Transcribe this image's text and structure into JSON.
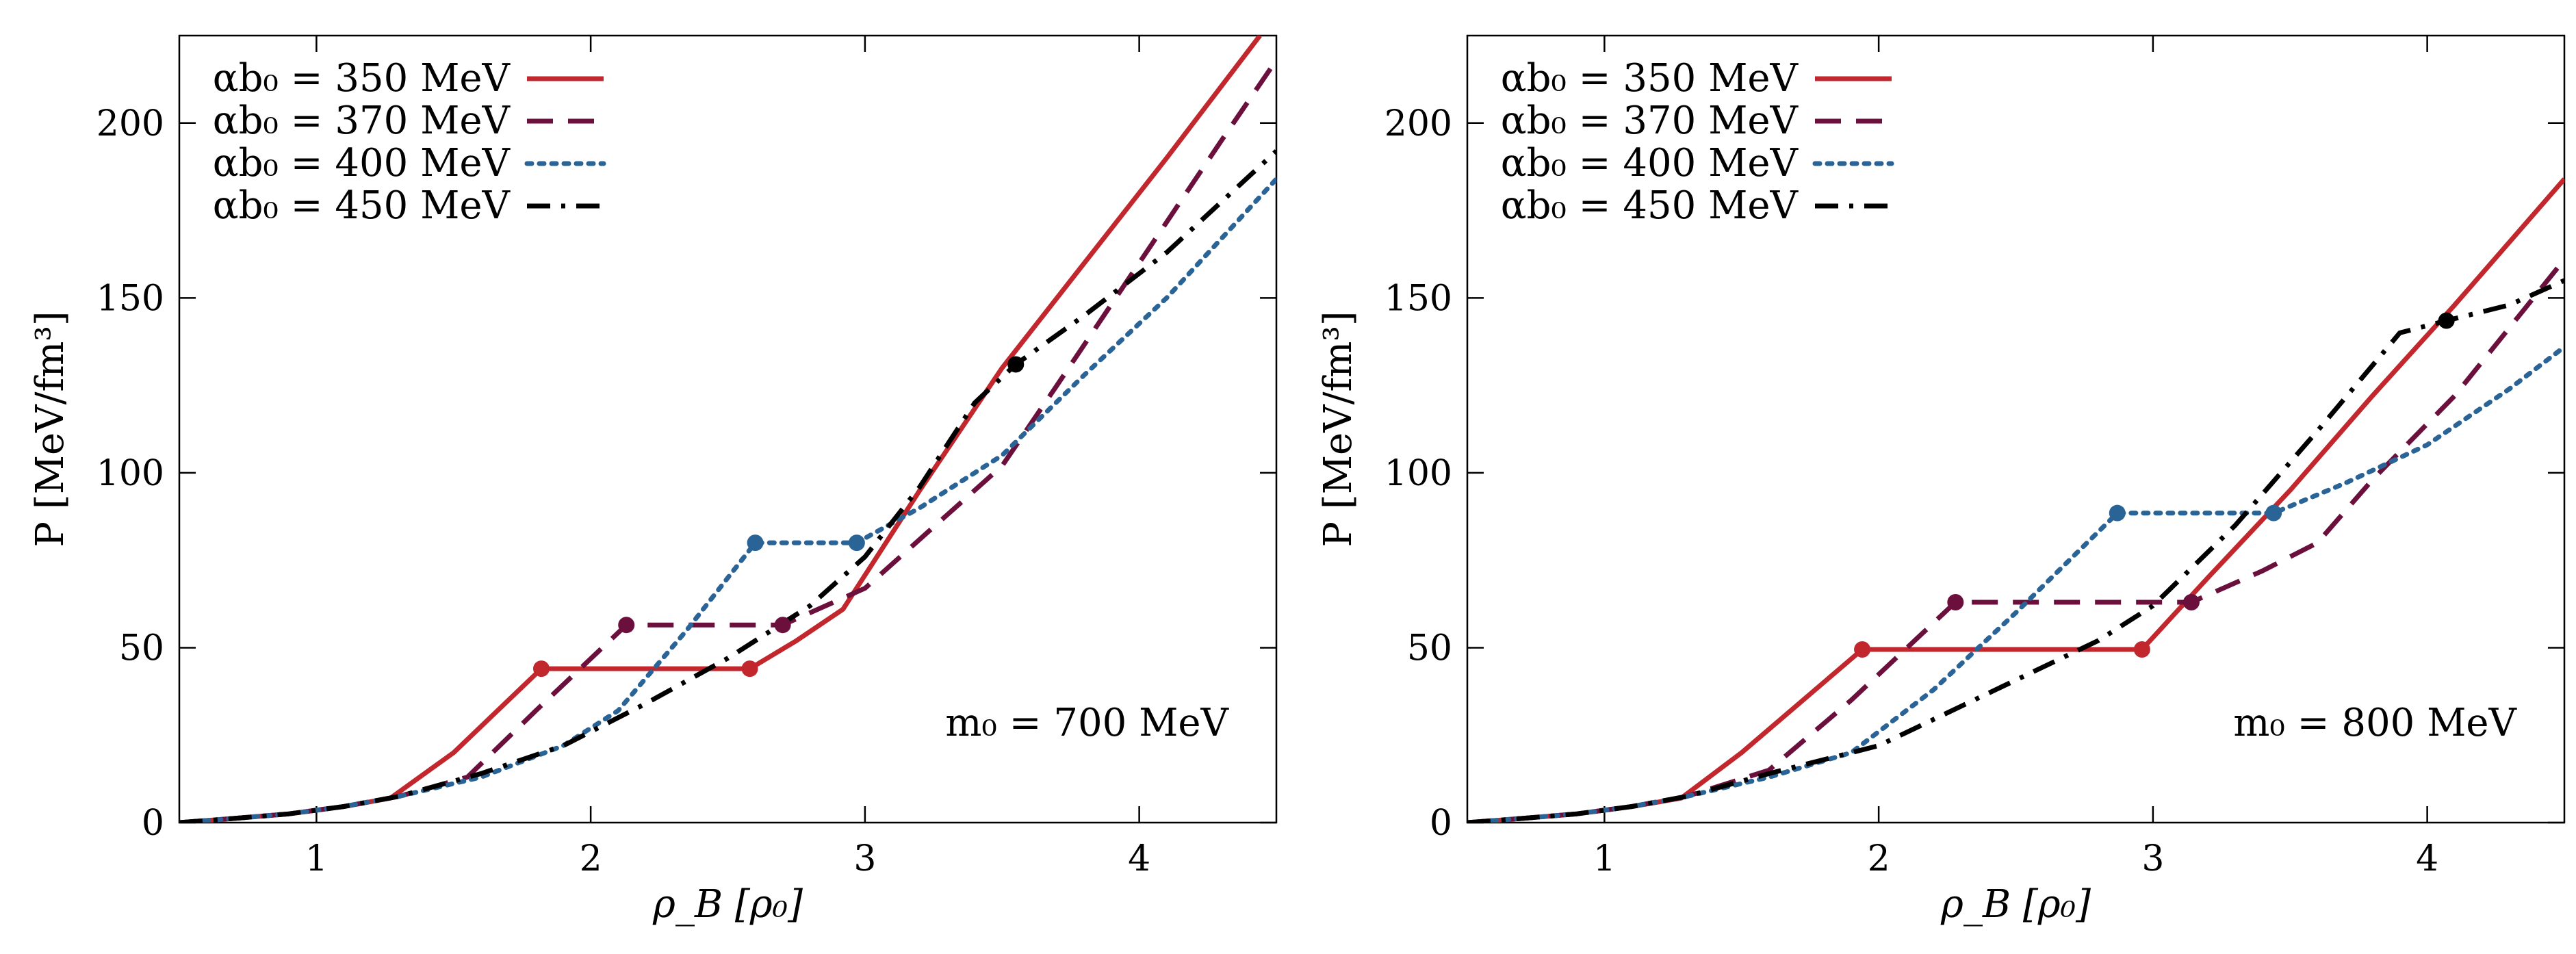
{
  "colors": {
    "red": "#c1272d",
    "maroon": "#6b0f3c",
    "blue": "#2a6496",
    "black": "#000000"
  },
  "legend_labels": [
    "αb₀ = 350 MeV",
    "αb₀ = 370 MeV",
    "αb₀ = 400 MeV",
    "αb₀ = 450 MeV"
  ],
  "chart_data": [
    {
      "type": "line",
      "xlabel": "ρ_B [ρ₀]",
      "ylabel": "P [MeV/fm³]",
      "xlim": [
        0.5,
        4.5
      ],
      "ylim": [
        0,
        225
      ],
      "xticks": [
        1,
        2,
        3,
        4
      ],
      "yticks": [
        0,
        50,
        100,
        150,
        200
      ],
      "xtick_labels": [
        "1",
        "2",
        "3",
        "4"
      ],
      "ytick_labels": [
        "0",
        "50",
        "100",
        "150",
        "200"
      ],
      "annotation": "m₀ = 700 MeV",
      "legend_position": "top-left",
      "grid": false,
      "series": [
        {
          "name": "αb₀ = 350 MeV",
          "color": "#c1272d",
          "style": "solid",
          "points": [
            [
              0.5,
              0
            ],
            [
              0.7,
              1.2
            ],
            [
              0.9,
              2.5
            ],
            [
              1.1,
              4.6
            ],
            [
              1.27,
              7
            ],
            [
              1.5,
              20
            ],
            [
              1.82,
              44
            ],
            [
              2.58,
              44
            ],
            [
              2.75,
              52
            ],
            [
              2.92,
              61
            ],
            [
              3.2,
              95
            ],
            [
              3.5,
              130
            ],
            [
              3.8,
              160
            ],
            [
              4.1,
              190
            ],
            [
              4.44,
              225
            ]
          ],
          "markers": [
            [
              1.82,
              44
            ],
            [
              2.58,
              44
            ]
          ]
        },
        {
          "name": "αb₀ = 370 MeV",
          "color": "#6b0f3c",
          "style": "dashed",
          "points": [
            [
              0.5,
              0
            ],
            [
              0.7,
              1.2
            ],
            [
              0.9,
              2.5
            ],
            [
              1.1,
              4.6
            ],
            [
              1.3,
              7.5
            ],
            [
              1.55,
              13
            ],
            [
              1.8,
              32
            ],
            [
              2.13,
              56.5
            ],
            [
              2.7,
              56.5
            ],
            [
              3.0,
              67
            ],
            [
              3.3,
              88
            ],
            [
              3.5,
              102
            ],
            [
              3.7,
              125
            ],
            [
              4.0,
              160
            ],
            [
              4.3,
              195
            ],
            [
              4.5,
              218
            ]
          ],
          "markers": [
            [
              2.13,
              56.5
            ],
            [
              2.7,
              56.5
            ]
          ]
        },
        {
          "name": "αb₀ = 400 MeV",
          "color": "#2a6496",
          "style": "dotted",
          "points": [
            [
              0.5,
              0
            ],
            [
              0.7,
              1.2
            ],
            [
              0.9,
              2.5
            ],
            [
              1.1,
              4.6
            ],
            [
              1.3,
              7.5
            ],
            [
              1.6,
              13
            ],
            [
              1.9,
              22
            ],
            [
              2.1,
              32
            ],
            [
              2.35,
              55
            ],
            [
              2.6,
              80
            ],
            [
              2.97,
              80
            ],
            [
              3.2,
              90
            ],
            [
              3.5,
              105
            ],
            [
              3.8,
              128
            ],
            [
              4.1,
              150
            ],
            [
              4.5,
              184
            ]
          ],
          "markers": [
            [
              2.6,
              80
            ],
            [
              2.97,
              80
            ]
          ]
        },
        {
          "name": "αb₀ = 450 MeV",
          "color": "#000000",
          "style": "dashdot",
          "points": [
            [
              0.5,
              0
            ],
            [
              0.7,
              1.2
            ],
            [
              0.9,
              2.5
            ],
            [
              1.1,
              4.6
            ],
            [
              1.3,
              7.5
            ],
            [
              1.6,
              14
            ],
            [
              1.9,
              22
            ],
            [
              2.2,
              34
            ],
            [
              2.5,
              47
            ],
            [
              2.8,
              62
            ],
            [
              3.0,
              76
            ],
            [
              3.2,
              96
            ],
            [
              3.4,
              120
            ],
            [
              3.55,
              131
            ],
            [
              3.8,
              145
            ],
            [
              4.1,
              163
            ],
            [
              4.5,
              192
            ]
          ],
          "markers": [
            [
              3.55,
              131
            ]
          ]
        }
      ]
    },
    {
      "type": "line",
      "xlabel": "ρ_B [ρ₀]",
      "ylabel": "P [MeV/fm³]",
      "xlim": [
        0.5,
        4.5
      ],
      "ylim": [
        0,
        225
      ],
      "xticks": [
        1,
        2,
        3,
        4
      ],
      "yticks": [
        0,
        50,
        100,
        150,
        200
      ],
      "xtick_labels": [
        "1",
        "2",
        "3",
        "4"
      ],
      "ytick_labels": [
        "0",
        "50",
        "100",
        "150",
        "200"
      ],
      "annotation": "m₀ = 800 MeV",
      "legend_position": "top-left",
      "grid": false,
      "series": [
        {
          "name": "αb₀ = 350 MeV",
          "color": "#c1272d",
          "style": "solid",
          "points": [
            [
              0.5,
              0
            ],
            [
              0.7,
              1.2
            ],
            [
              0.9,
              2.5
            ],
            [
              1.1,
              4.6
            ],
            [
              1.28,
              7
            ],
            [
              1.5,
              20
            ],
            [
              1.94,
              49.5
            ],
            [
              2.96,
              49.5
            ],
            [
              3.2,
              70
            ],
            [
              3.5,
              95
            ],
            [
              3.8,
              122
            ],
            [
              4.1,
              148
            ],
            [
              4.5,
              184
            ]
          ],
          "markers": [
            [
              1.94,
              49.5
            ],
            [
              2.96,
              49.5
            ]
          ]
        },
        {
          "name": "αb₀ = 370 MeV",
          "color": "#6b0f3c",
          "style": "dashed",
          "points": [
            [
              0.5,
              0
            ],
            [
              0.7,
              1.2
            ],
            [
              0.9,
              2.5
            ],
            [
              1.1,
              4.6
            ],
            [
              1.3,
              7.5
            ],
            [
              1.6,
              15
            ],
            [
              1.9,
              35
            ],
            [
              2.28,
              63
            ],
            [
              3.14,
              63
            ],
            [
              3.4,
              72
            ],
            [
              3.6,
              80
            ],
            [
              3.8,
              98
            ],
            [
              4.1,
              122
            ],
            [
              4.5,
              161
            ]
          ],
          "markers": [
            [
              2.28,
              63
            ],
            [
              3.14,
              63
            ]
          ]
        },
        {
          "name": "αb₀ = 400 MeV",
          "color": "#2a6496",
          "style": "dotted",
          "points": [
            [
              0.5,
              0
            ],
            [
              0.7,
              1.2
            ],
            [
              0.9,
              2.5
            ],
            [
              1.1,
              4.6
            ],
            [
              1.3,
              7.5
            ],
            [
              1.6,
              13
            ],
            [
              1.9,
              20
            ],
            [
              2.2,
              38
            ],
            [
              2.5,
              60
            ],
            [
              2.87,
              88.5
            ],
            [
              3.44,
              88.5
            ],
            [
              3.7,
              97
            ],
            [
              4.0,
              108
            ],
            [
              4.3,
              124
            ],
            [
              4.5,
              136
            ]
          ],
          "markers": [
            [
              2.87,
              88.5
            ],
            [
              3.44,
              88.5
            ]
          ]
        },
        {
          "name": "αb₀ = 450 MeV",
          "color": "#000000",
          "style": "dashdot",
          "points": [
            [
              0.5,
              0
            ],
            [
              0.7,
              1.2
            ],
            [
              0.9,
              2.5
            ],
            [
              1.1,
              4.6
            ],
            [
              1.3,
              7.5
            ],
            [
              1.6,
              14
            ],
            [
              2.0,
              22
            ],
            [
              2.4,
              37
            ],
            [
              2.8,
              52
            ],
            [
              3.0,
              62
            ],
            [
              3.3,
              85
            ],
            [
              3.6,
              112
            ],
            [
              3.9,
              140
            ],
            [
              4.07,
              143.5
            ],
            [
              4.3,
              148
            ],
            [
              4.5,
              155
            ]
          ],
          "markers": [
            [
              4.07,
              143.5
            ]
          ]
        }
      ]
    }
  ]
}
